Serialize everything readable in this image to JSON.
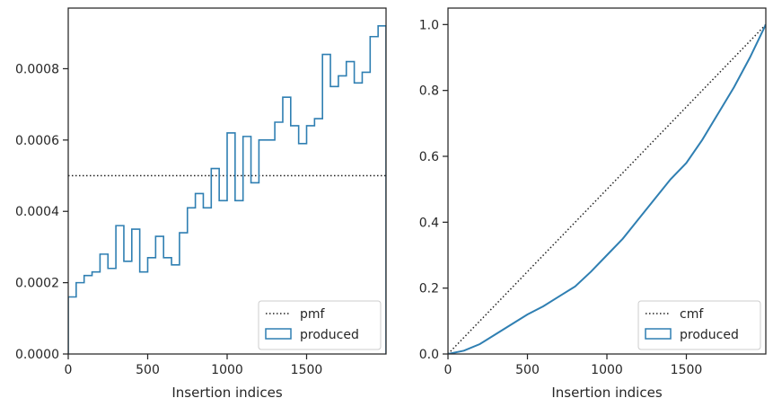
{
  "colors": {
    "series": "#2f7fb2",
    "reference": "#222222",
    "axis": "#262626",
    "legend_border": "#cccccc"
  },
  "chart_data": [
    {
      "type": "histogram-step",
      "xlabel": "Insertion indices",
      "ylabel": "",
      "xlim": [
        0,
        2000
      ],
      "ylim": [
        0,
        0.00097
      ],
      "xticks": [
        0,
        500,
        1000,
        1500
      ],
      "xtick_labels": [
        "0",
        "500",
        "1000",
        "1500"
      ],
      "yticks": [
        0,
        0.0002,
        0.0004,
        0.0006,
        0.0008
      ],
      "ytick_labels": [
        "0.0000",
        "0.0002",
        "0.0004",
        "0.0006",
        "0.0008"
      ],
      "legend_position": "lower-right",
      "reference": {
        "name": "pmf",
        "style": "dotted",
        "y": 0.0005
      },
      "series": [
        {
          "name": "produced",
          "bin_edges": [
            0,
            50,
            100,
            150,
            200,
            250,
            300,
            350,
            400,
            450,
            500,
            550,
            600,
            650,
            700,
            750,
            800,
            850,
            900,
            950,
            1000,
            1050,
            1100,
            1150,
            1200,
            1250,
            1300,
            1350,
            1400,
            1450,
            1500,
            1550,
            1600,
            1650,
            1700,
            1750,
            1800,
            1850,
            1900,
            1950,
            2000
          ],
          "values": [
            0.00016,
            0.0002,
            0.00022,
            0.00023,
            0.00028,
            0.00024,
            0.00036,
            0.00026,
            0.00035,
            0.00023,
            0.00027,
            0.00033,
            0.00027,
            0.00025,
            0.00034,
            0.00041,
            0.00045,
            0.00041,
            0.00052,
            0.00043,
            0.00062,
            0.00043,
            0.00061,
            0.00048,
            0.0006,
            0.0006,
            0.00065,
            0.00072,
            0.00064,
            0.00059,
            0.00064,
            0.00066,
            0.00084,
            0.00075,
            0.00078,
            0.00082,
            0.00076,
            0.00079,
            0.00089,
            0.00092
          ]
        }
      ]
    },
    {
      "type": "line",
      "xlabel": "Insertion indices",
      "ylabel": "",
      "xlim": [
        0,
        2000
      ],
      "ylim": [
        0,
        1.05
      ],
      "xticks": [
        0,
        500,
        1000,
        1500
      ],
      "xtick_labels": [
        "0",
        "500",
        "1000",
        "1500"
      ],
      "yticks": [
        0,
        0.2,
        0.4,
        0.6,
        0.8,
        1.0
      ],
      "ytick_labels": [
        "0.0",
        "0.2",
        "0.4",
        "0.6",
        "0.8",
        "1.0"
      ],
      "legend_position": "lower-right",
      "reference": {
        "name": "cmf",
        "style": "dotted",
        "x": [
          0,
          2000
        ],
        "y": [
          0,
          1
        ]
      },
      "series": [
        {
          "name": "produced",
          "x": [
            0,
            100,
            200,
            300,
            400,
            500,
            600,
            700,
            800,
            900,
            1000,
            1100,
            1200,
            1300,
            1400,
            1500,
            1600,
            1700,
            1800,
            1900,
            2000
          ],
          "y": [
            0,
            0.01,
            0.03,
            0.06,
            0.09,
            0.12,
            0.145,
            0.175,
            0.205,
            0.25,
            0.3,
            0.35,
            0.41,
            0.47,
            0.53,
            0.58,
            0.65,
            0.73,
            0.81,
            0.9,
            1.0
          ]
        }
      ]
    }
  ]
}
